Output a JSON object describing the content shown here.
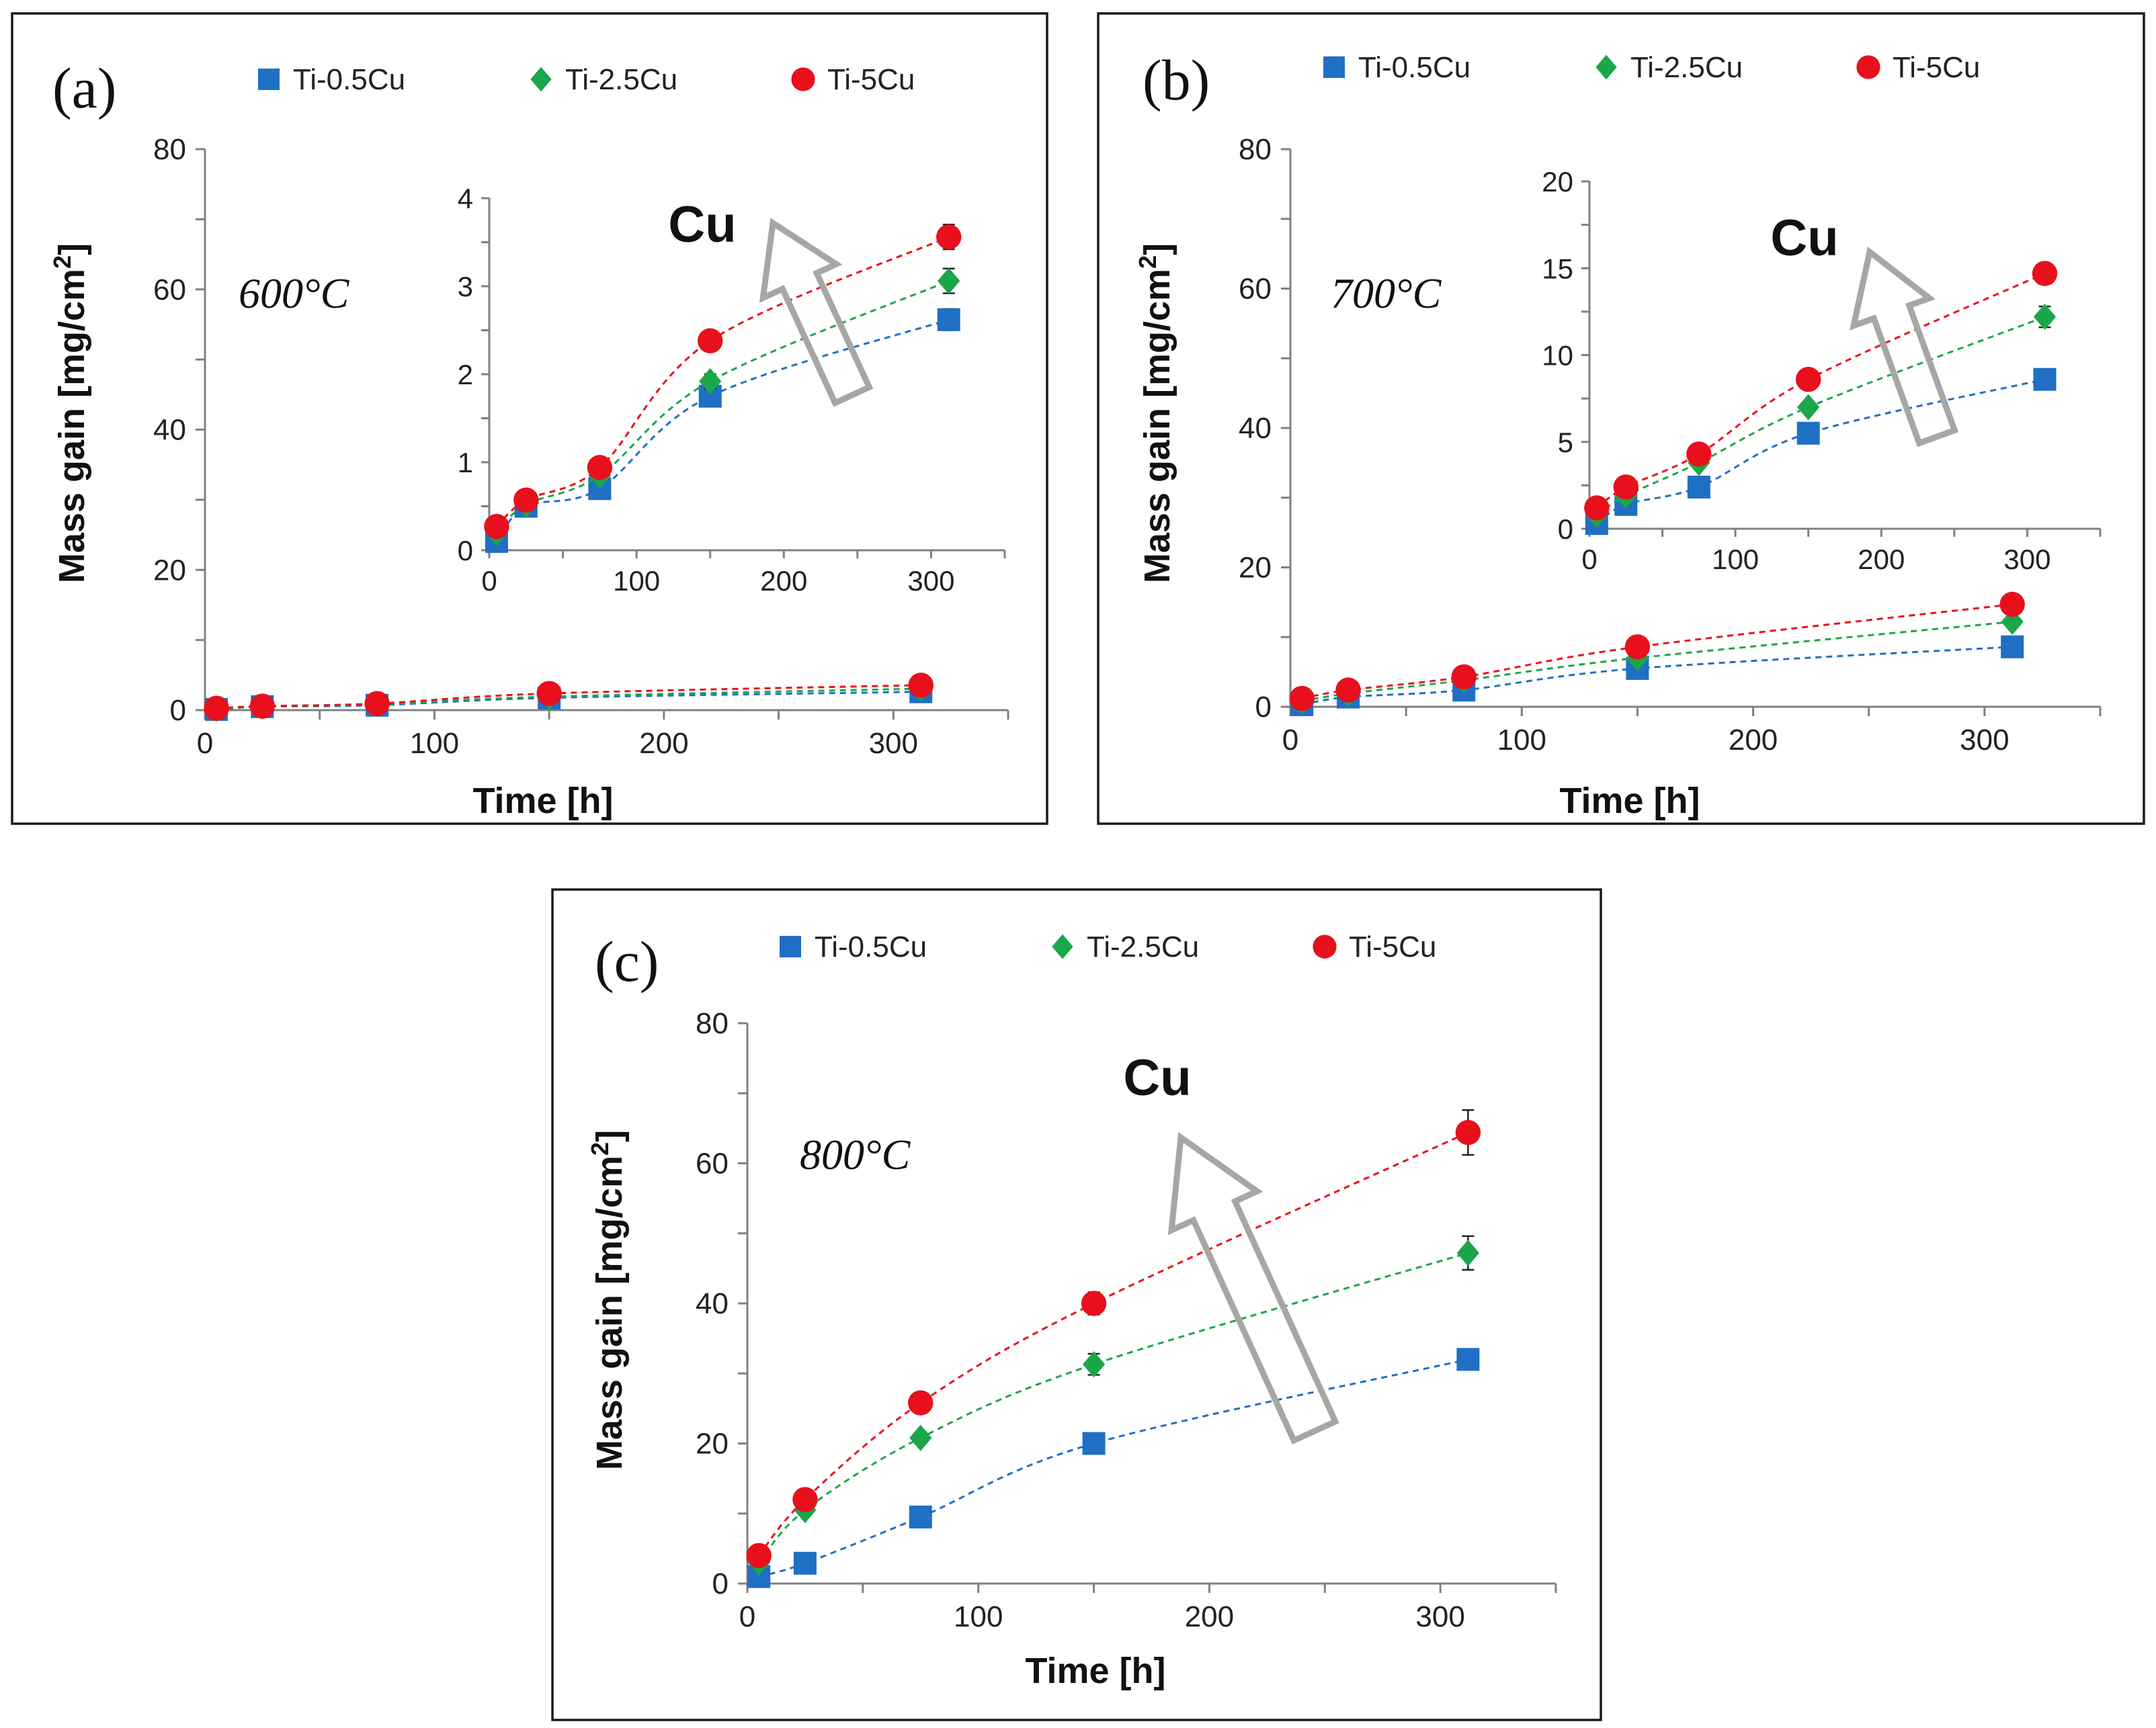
{
  "figure": {
    "legend": [
      "Ti-0.5Cu",
      "Ti-2.5Cu",
      "Ti-5Cu"
    ],
    "arrow_label": "Cu",
    "colors": {
      "Ti-0.5Cu": "#1f6fc5",
      "Ti-2.5Cu": "#1aa64a",
      "Ti-5Cu": "#e8101c"
    }
  },
  "chart_data": [
    {
      "type": "scatter",
      "panel": "(a)",
      "temperature": "600°C",
      "title": "",
      "xlabel": "Time [h]",
      "ylabel": "Mass gain [mg/cm2]",
      "ylabel_main": "Mass gain [mg/cm",
      "ylabel_sup": "2",
      "ylabel_end": "]",
      "xlim": [
        0,
        350
      ],
      "ylim": [
        0,
        80
      ],
      "xticks": [
        0,
        100,
        200,
        300
      ],
      "yticks": [
        0,
        20,
        40,
        60,
        80
      ],
      "x": [
        5,
        25,
        75,
        150,
        312
      ],
      "series": [
        {
          "name": "Ti-0.5Cu",
          "values": [
            0.1,
            0.5,
            0.7,
            1.75,
            2.62
          ],
          "err": [
            0,
            0,
            0,
            0.08,
            0.12
          ]
        },
        {
          "name": "Ti-2.5Cu",
          "values": [
            0.2,
            0.52,
            0.85,
            1.92,
            3.06
          ],
          "err": [
            0,
            0,
            0,
            0.08,
            0.14
          ]
        },
        {
          "name": "Ti-5Cu",
          "values": [
            0.27,
            0.57,
            0.94,
            2.38,
            3.56
          ],
          "err": [
            0,
            0,
            0.05,
            0.08,
            0.14
          ]
        }
      ],
      "inset": {
        "xlim": [
          0,
          350
        ],
        "ylim": [
          0,
          4
        ],
        "xticks": [
          0,
          100,
          200,
          300
        ],
        "yticks": [
          0,
          1,
          2,
          3,
          4
        ]
      }
    },
    {
      "type": "scatter",
      "panel": "(b)",
      "temperature": "700°C",
      "title": "",
      "xlabel": "Time [h]",
      "ylabel": "Mass gain [mg/cm2]",
      "ylabel_main": "Mass gain [mg/cm",
      "ylabel_sup": "2",
      "ylabel_end": "]",
      "xlim": [
        0,
        350
      ],
      "ylim": [
        0,
        80
      ],
      "xticks": [
        0,
        100,
        200,
        300
      ],
      "yticks": [
        0,
        20,
        40,
        60,
        80
      ],
      "x": [
        5,
        25,
        75,
        150,
        312
      ],
      "series": [
        {
          "name": "Ti-0.5Cu",
          "values": [
            0.3,
            1.4,
            2.4,
            5.5,
            8.6
          ],
          "err": [
            0,
            0,
            0,
            0.2,
            0.3
          ]
        },
        {
          "name": "Ti-2.5Cu",
          "values": [
            0.8,
            1.9,
            3.8,
            7.0,
            12.2
          ],
          "err": [
            0,
            0,
            0.2,
            0.3,
            0.6
          ]
        },
        {
          "name": "Ti-5Cu",
          "values": [
            1.2,
            2.4,
            4.3,
            8.6,
            14.7
          ],
          "err": [
            0,
            0,
            0.2,
            0.3,
            0.6
          ]
        }
      ],
      "inset": {
        "xlim": [
          0,
          350
        ],
        "ylim": [
          0,
          20
        ],
        "xticks": [
          0,
          100,
          200,
          300
        ],
        "yticks": [
          0,
          5,
          10,
          15,
          20
        ]
      }
    },
    {
      "type": "scatter",
      "panel": "(c)",
      "temperature": "800°C",
      "title": "",
      "xlabel": "Time [h]",
      "ylabel": "Mass gain [mg/cm2]",
      "ylabel_main": "Mass gain [mg/cm",
      "ylabel_sup": "2",
      "ylabel_end": "]",
      "xlim": [
        0,
        350
      ],
      "ylim": [
        0,
        80
      ],
      "xticks": [
        0,
        100,
        200,
        300
      ],
      "yticks": [
        0,
        20,
        40,
        60,
        80
      ],
      "x": [
        5,
        25,
        75,
        150,
        312
      ],
      "series": [
        {
          "name": "Ti-0.5Cu",
          "values": [
            1.0,
            2.9,
            9.5,
            20.0,
            32.0
          ],
          "err": [
            0,
            0,
            0,
            0.5,
            0.8
          ]
        },
        {
          "name": "Ti-2.5Cu",
          "values": [
            3.0,
            10.5,
            20.8,
            31.3,
            47.2
          ],
          "err": [
            0,
            0,
            0.8,
            1.5,
            2.4
          ]
        },
        {
          "name": "Ti-5Cu",
          "values": [
            4.0,
            12.0,
            25.8,
            40.0,
            64.4
          ],
          "err": [
            0,
            0,
            0.6,
            1.6,
            3.2
          ]
        }
      ]
    }
  ]
}
